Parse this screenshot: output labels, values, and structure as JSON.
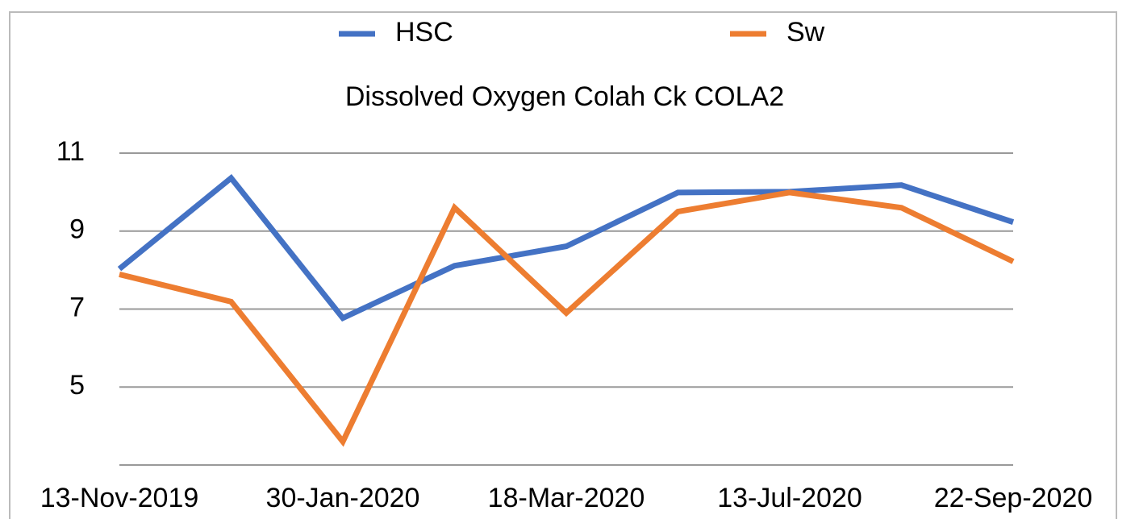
{
  "chart_data": {
    "type": "line",
    "title": "Dissolved Oxygen Colah Ck COLA2",
    "categories": [
      "13-Nov-2019",
      null,
      "30-Jan-2020",
      null,
      "18-Mar-2020",
      null,
      "13-Jul-2020",
      null,
      "22-Sep-2020"
    ],
    "series": [
      {
        "name": "HSC",
        "color": "#4472c4",
        "values": [
          8.03,
          10.36,
          6.77,
          8.11,
          8.61,
          9.99,
          10.01,
          10.18,
          9.23
        ]
      },
      {
        "name": "Sw",
        "color": "#ed7d31",
        "values": [
          7.89,
          7.19,
          3.6,
          9.6,
          6.9,
          9.5,
          9.99,
          9.6,
          8.22
        ]
      }
    ],
    "ylim": [
      3,
      11
    ],
    "yticks": [
      5,
      7,
      9,
      11
    ],
    "grid": true,
    "legend": "top"
  }
}
